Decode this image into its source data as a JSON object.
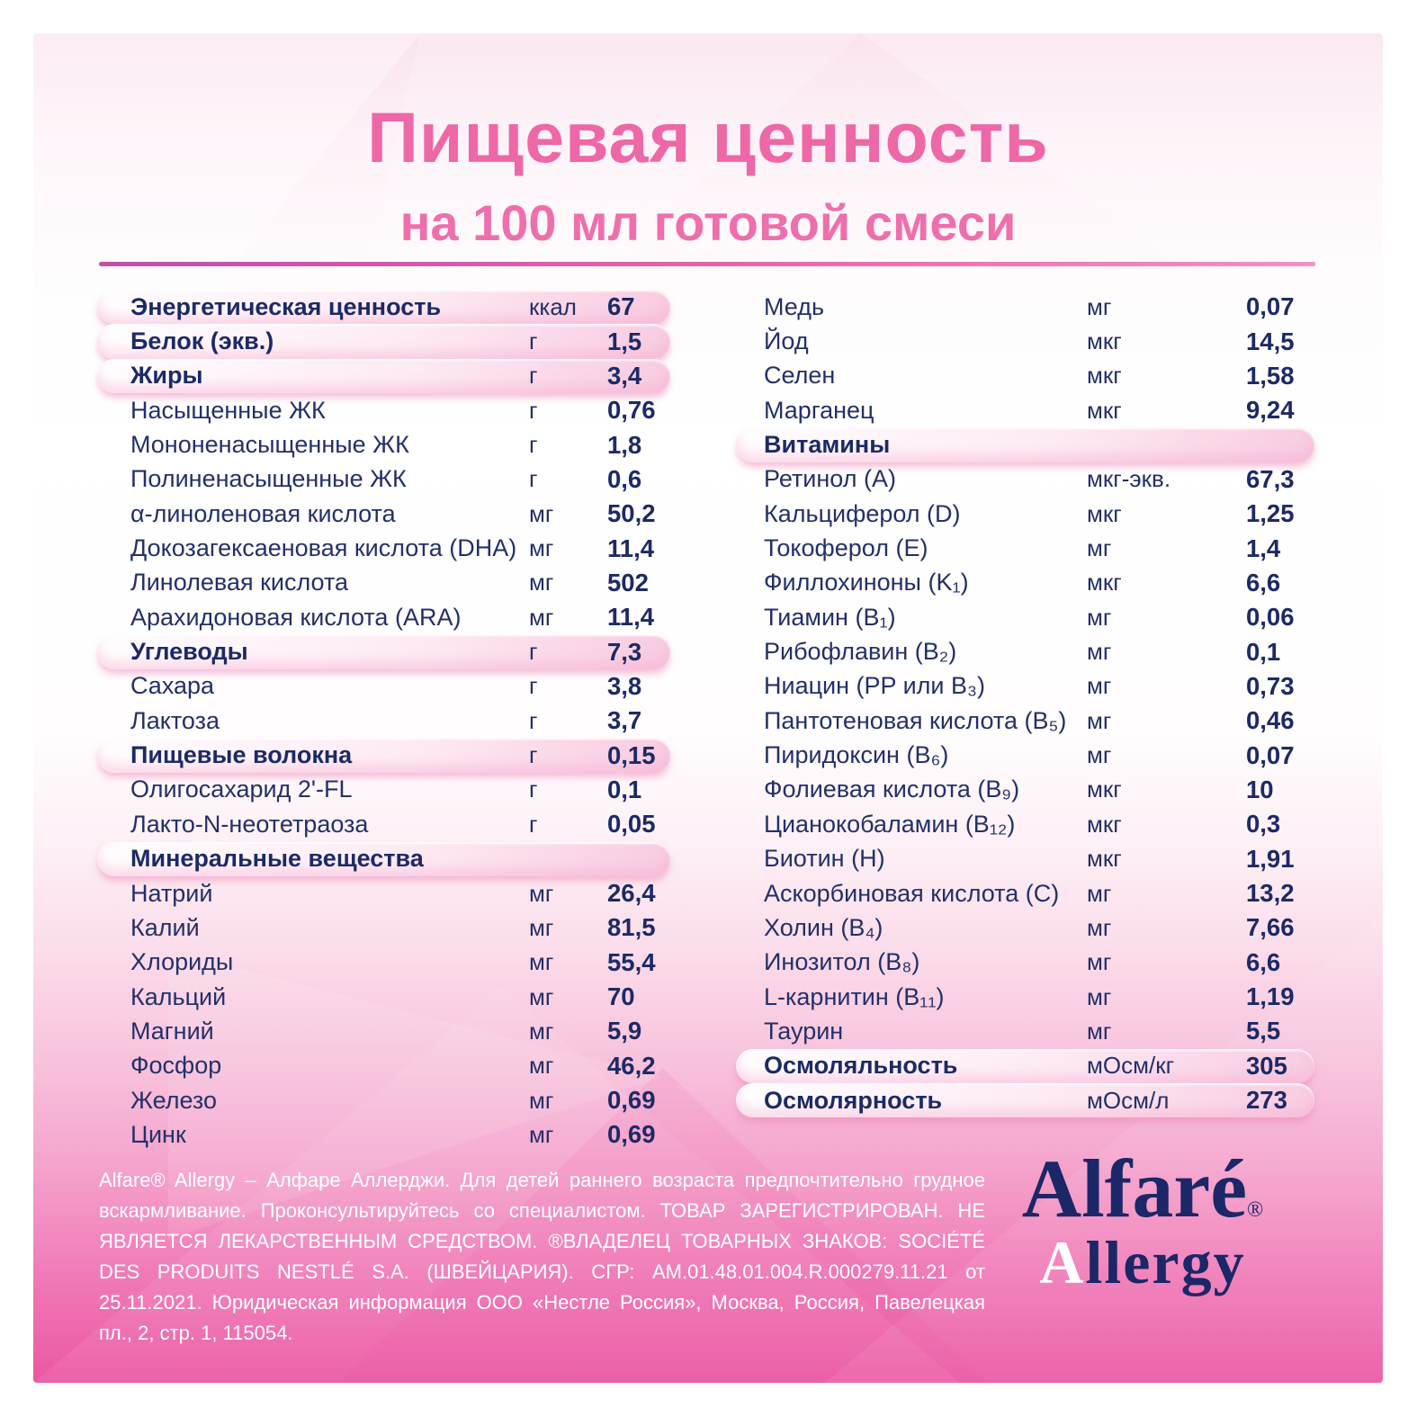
{
  "title": {
    "main": "Пищевая ценность",
    "subtitle": "на 100 мл готовой смеси"
  },
  "table": {
    "left_rows": [
      {
        "label": "Энергетическая ценность",
        "unit": "ккал",
        "value": "67",
        "highlight": true
      },
      {
        "label": "Белок (экв.)",
        "unit": "г",
        "value": "1,5",
        "highlight": true
      },
      {
        "label": "Жиры",
        "unit": "г",
        "value": "3,4",
        "highlight": true
      },
      {
        "label": "Насыщенные ЖК",
        "unit": "г",
        "value": "0,76",
        "highlight": false
      },
      {
        "label": "Мононенасыщенные ЖК",
        "unit": "г",
        "value": "1,8",
        "highlight": false
      },
      {
        "label": "Полиненасыщенные ЖК",
        "unit": "г",
        "value": "0,6",
        "highlight": false
      },
      {
        "label": "α-линоленовая кислота",
        "unit": "мг",
        "value": "50,2",
        "highlight": false
      },
      {
        "label": "Докозагексаеновая кислота (DHA)",
        "unit": "мг",
        "value": "11,4",
        "highlight": false
      },
      {
        "label": "Линолевая кислота",
        "unit": "мг",
        "value": "502",
        "highlight": false
      },
      {
        "label": "Арахидоновая кислота (ARA)",
        "unit": "мг",
        "value": "11,4",
        "highlight": false
      },
      {
        "label": "Углеводы",
        "unit": "г",
        "value": "7,3",
        "highlight": true
      },
      {
        "label": "Сахара",
        "unit": "г",
        "value": "3,8",
        "highlight": false
      },
      {
        "label": "Лактоза",
        "unit": "г",
        "value": "3,7",
        "highlight": false
      },
      {
        "label": "Пищевые волокна",
        "unit": "г",
        "value": "0,15",
        "highlight": true
      },
      {
        "label": "Олигосахарид 2'-FL",
        "unit": "г",
        "value": "0,1",
        "highlight": false
      },
      {
        "label": "Лакто-N-неотетраоза",
        "unit": "г",
        "value": "0,05",
        "highlight": false
      },
      {
        "label": "Минеральные вещества",
        "unit": "",
        "value": "",
        "highlight": true
      },
      {
        "label": "Натрий",
        "unit": "мг",
        "value": "26,4",
        "highlight": false
      },
      {
        "label": "Калий",
        "unit": "мг",
        "value": "81,5",
        "highlight": false
      },
      {
        "label": "Хлориды",
        "unit": "мг",
        "value": "55,4",
        "highlight": false
      },
      {
        "label": "Кальций",
        "unit": "мг",
        "value": "70",
        "highlight": false
      },
      {
        "label": "Магний",
        "unit": "мг",
        "value": "5,9",
        "highlight": false
      },
      {
        "label": "Фосфор",
        "unit": "мг",
        "value": "46,2",
        "highlight": false
      },
      {
        "label": "Железо",
        "unit": "мг",
        "value": "0,69",
        "highlight": false
      },
      {
        "label": "Цинк",
        "unit": "мг",
        "value": "0,69",
        "highlight": false
      }
    ],
    "right_rows": [
      {
        "label": "Медь",
        "unit": "мг",
        "value": "0,07",
        "highlight": false
      },
      {
        "label": "Йод",
        "unit": "мкг",
        "value": "14,5",
        "highlight": false
      },
      {
        "label": "Селен",
        "unit": "мкг",
        "value": "1,58",
        "highlight": false
      },
      {
        "label": "Марганец",
        "unit": "мкг",
        "value": "9,24",
        "highlight": false
      },
      {
        "label": "Витамины",
        "unit": "",
        "value": "",
        "highlight": true
      },
      {
        "label": "Ретинол (A)",
        "unit": "мкг-экв.",
        "value": "67,3",
        "highlight": false
      },
      {
        "label": "Кальциферол (D)",
        "unit": "мкг",
        "value": "1,25",
        "highlight": false
      },
      {
        "label": "Токоферол (E)",
        "unit": "мг",
        "value": "1,4",
        "highlight": false
      },
      {
        "label": "Филлохиноны (K₁)",
        "unit": "мкг",
        "value": "6,6",
        "highlight": false
      },
      {
        "label": "Тиамин (B₁)",
        "unit": "мг",
        "value": "0,06",
        "highlight": false
      },
      {
        "label": "Рибофлавин (B₂)",
        "unit": "мг",
        "value": "0,1",
        "highlight": false
      },
      {
        "label": "Ниацин (PP или B₃)",
        "unit": "мг",
        "value": "0,73",
        "highlight": false
      },
      {
        "label": "Пантотеновая кислота (B₅)",
        "unit": "мг",
        "value": "0,46",
        "highlight": false
      },
      {
        "label": "Пиридоксин (B₆)",
        "unit": "мг",
        "value": "0,07",
        "highlight": false
      },
      {
        "label": "Фолиевая кислота (B₉)",
        "unit": "мкг",
        "value": "10",
        "highlight": false
      },
      {
        "label": "Цианокобаламин (B₁₂)",
        "unit": "мкг",
        "value": "0,3",
        "highlight": false
      },
      {
        "label": "Биотин (H)",
        "unit": "мкг",
        "value": "1,91",
        "highlight": false
      },
      {
        "label": "Аскорбиновая кислота (C)",
        "unit": "мг",
        "value": "13,2",
        "highlight": false
      },
      {
        "label": "Холин (B₄)",
        "unit": "мг",
        "value": "7,66",
        "highlight": false
      },
      {
        "label": "Инозитол (B₈)",
        "unit": "мг",
        "value": "6,6",
        "highlight": false
      },
      {
        "label": "L-карнитин (B₁₁)",
        "unit": "мг",
        "value": "1,19",
        "highlight": false
      },
      {
        "label": "Таурин",
        "unit": "мг",
        "value": "5,5",
        "highlight": false
      },
      {
        "label": "Осмоляльность",
        "unit": "мОсм/кг",
        "value": "305",
        "highlight": true
      },
      {
        "label": "Осмолярность",
        "unit": "мОсм/л",
        "value": "273",
        "highlight": true
      }
    ]
  },
  "footer": {
    "legal": "Alfare® Allergy – Алфаре Аллерджи. Для детей раннего возраста предпочтительно грудное вскармливание. Проконсультируйтесь со специалистом. ТОВАР ЗАРЕГИСТРИРОВАН. НЕ ЯВЛЯЕТСЯ ЛЕКАРСТВЕННЫМ СРЕДСТВОМ. ®ВЛАДЕЛЕЦ ТОВАРНЫХ ЗНАКОВ: SOCIÉTÉ DES PRODUITS NESTLÉ S.A. (ШВЕЙЦАРИЯ). СГР: AM.01.48.01.004.R.000279.11.21 от 25.11.2021. Юридическая информация ООО «Нестле Россия», Москва, Россия, Павелецкая пл., 2, стр. 1, 115054.",
    "logo": {
      "brand": "Alfaré",
      "registered": "®",
      "line2_first": "A",
      "line2_rest": "llergy"
    }
  },
  "colors": {
    "title_pink": "#ee67a6",
    "text_navy": "#233069",
    "value_navy": "#1c2a66",
    "pill_pink": "#f8cbe0",
    "divider_left": "#c050a5",
    "divider_right": "#f490c3",
    "card_bottom_pink": "#eb57a3",
    "logo_navy": "#1b2766",
    "logo_accent_white": "#ffffff"
  }
}
